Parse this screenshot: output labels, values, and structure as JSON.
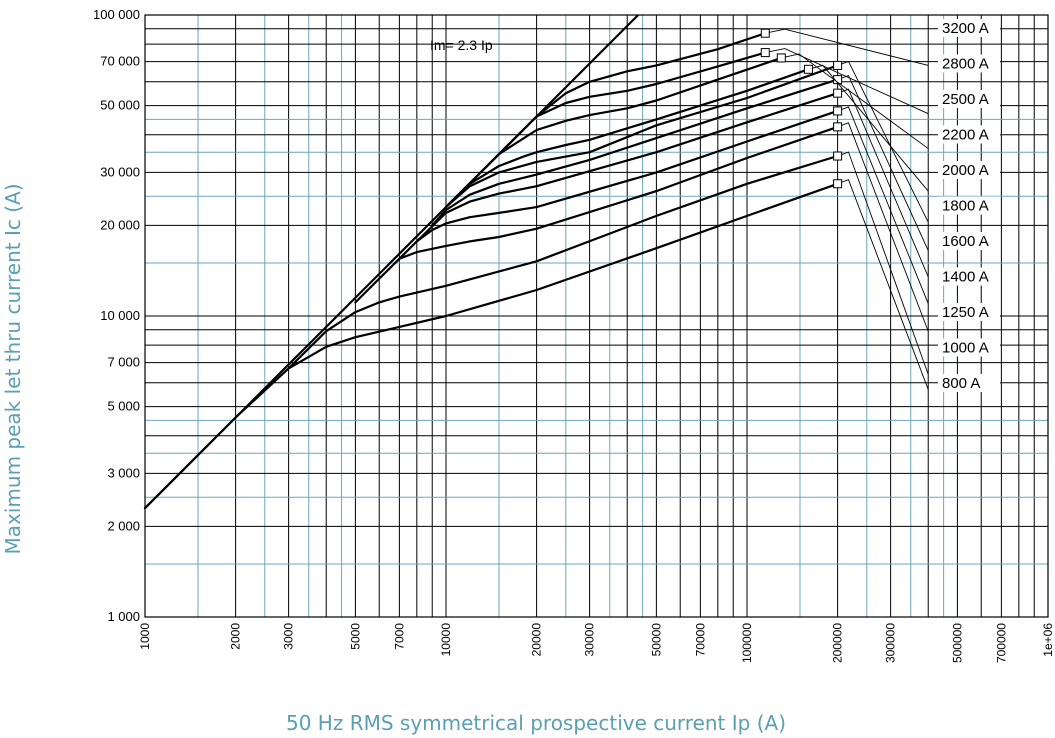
{
  "chart_data": {
    "type": "line",
    "xscale": "log",
    "yscale": "log",
    "xlim": [
      1000,
      1000000
    ],
    "ylim": [
      1000,
      100000
    ],
    "xlabel": "50 Hz RMS symmetrical prospective current Ip (A)",
    "ylabel": "Maximum peak let thru current Ic (A)",
    "x_tick_labels": [
      {
        "v": 1000,
        "label": "1000"
      },
      {
        "v": 2000,
        "label": "2000"
      },
      {
        "v": 3000,
        "label": "3000"
      },
      {
        "v": 5000,
        "label": "5000"
      },
      {
        "v": 7000,
        "label": "7000"
      },
      {
        "v": 10000,
        "label": "10000"
      },
      {
        "v": 20000,
        "label": "20000"
      },
      {
        "v": 30000,
        "label": "30000"
      },
      {
        "v": 50000,
        "label": "50000"
      },
      {
        "v": 70000,
        "label": "70000"
      },
      {
        "v": 100000,
        "label": "100000"
      },
      {
        "v": 200000,
        "label": "200000"
      },
      {
        "v": 300000,
        "label": "300000"
      },
      {
        "v": 500000,
        "label": "500000"
      },
      {
        "v": 700000,
        "label": "700000"
      },
      {
        "v": 1000000,
        "label": "1e+06"
      }
    ],
    "y_tick_labels": [
      {
        "v": 1000,
        "label": "1 000"
      },
      {
        "v": 2000,
        "label": "2 000"
      },
      {
        "v": 3000,
        "label": "3 000"
      },
      {
        "v": 5000,
        "label": "5 000"
      },
      {
        "v": 7000,
        "label": "7 000"
      },
      {
        "v": 10000,
        "label": "10 000"
      },
      {
        "v": 20000,
        "label": "20 000"
      },
      {
        "v": 30000,
        "label": "30 000"
      },
      {
        "v": 50000,
        "label": "50 000"
      },
      {
        "v": 70000,
        "label": "70 000"
      },
      {
        "v": 100000,
        "label": "100 000"
      }
    ],
    "grid": true,
    "asymptote": {
      "label": "Im= 2.3 Ip",
      "factor": 2.3
    },
    "series": [
      {
        "name": "800 A",
        "x": [
          1000,
          2000,
          3000,
          4000,
          5000,
          7000,
          10000,
          20000,
          50000,
          100000,
          200000
        ],
        "y": [
          2300,
          4600,
          6700,
          7900,
          8500,
          9200,
          10000,
          12200,
          16800,
          21500,
          27500
        ],
        "marker": {
          "x": 200000,
          "y": 27500
        },
        "leader": {
          "x": 400000,
          "y": 5700
        }
      },
      {
        "name": "1000 A",
        "x": [
          3000,
          4000,
          5000,
          6000,
          7000,
          10000,
          20000,
          50000,
          100000,
          200000
        ],
        "y": [
          6700,
          8900,
          10300,
          11100,
          11600,
          12600,
          15200,
          21500,
          27500,
          34000
        ],
        "marker": {
          "x": 200000,
          "y": 34000
        },
        "leader": {
          "x": 400000,
          "y": 6400
        }
      },
      {
        "name": "1250 A",
        "x": [
          5000,
          7000,
          8000,
          10000,
          12000,
          15000,
          20000,
          50000,
          100000,
          200000
        ],
        "y": [
          11100,
          15500,
          16300,
          17100,
          17700,
          18300,
          19500,
          26000,
          33500,
          42500
        ],
        "marker": {
          "x": 200000,
          "y": 42500
        },
        "leader": {
          "x": 400000,
          "y": 8900
        }
      },
      {
        "name": "1400 A",
        "x": [
          7000,
          8000,
          9000,
          10000,
          12000,
          15000,
          20000,
          50000,
          100000,
          200000
        ],
        "y": [
          15500,
          17700,
          19300,
          20300,
          21300,
          22000,
          23000,
          30000,
          38000,
          48000
        ],
        "marker": {
          "x": 200000,
          "y": 48000
        },
        "leader": {
          "x": 400000,
          "y": 11000
        }
      },
      {
        "name": "1600 A",
        "x": [
          8000,
          10000,
          12000,
          15000,
          20000,
          50000,
          100000,
          200000
        ],
        "y": [
          17700,
          22000,
          24000,
          25500,
          27000,
          35000,
          44000,
          55000
        ],
        "marker": {
          "x": 200000,
          "y": 55000
        },
        "leader": {
          "x": 400000,
          "y": 13500
        }
      },
      {
        "name": "1800 A",
        "x": [
          9000,
          10000,
          12000,
          15000,
          20000,
          30000,
          50000,
          100000,
          200000
        ],
        "y": [
          20000,
          22500,
          25300,
          27500,
          29500,
          33000,
          39000,
          49000,
          61000
        ],
        "marker": {
          "x": 200000,
          "y": 61000
        },
        "leader": {
          "x": 400000,
          "y": 16500
        }
      },
      {
        "name": "2000 A",
        "x": [
          10000,
          12000,
          15000,
          20000,
          30000,
          50000,
          100000,
          200000
        ],
        "y": [
          23000,
          27000,
          30000,
          32500,
          35000,
          43000,
          53000,
          68000
        ],
        "marker": {
          "x": 200000,
          "y": 68000
        },
        "leader": {
          "x": 400000,
          "y": 20500
        }
      },
      {
        "name": "2200 A",
        "x": [
          10000,
          12000,
          15000,
          18000,
          20000,
          25000,
          30000,
          50000,
          100000,
          160000
        ],
        "y": [
          23000,
          27500,
          31500,
          33800,
          35000,
          37000,
          38500,
          45000,
          56000,
          66000
        ],
        "marker": {
          "x": 160000,
          "y": 66000
        },
        "leader": {
          "x": 400000,
          "y": 26000
        }
      },
      {
        "name": "2500 A",
        "x": [
          10000,
          15000,
          20000,
          25000,
          30000,
          40000,
          50000,
          80000,
          130000
        ],
        "y": [
          23000,
          34500,
          41500,
          44500,
          46500,
          49000,
          52000,
          61000,
          72000
        ],
        "marker": {
          "x": 130000,
          "y": 72000
        },
        "leader": {
          "x": 400000,
          "y": 36000
        }
      },
      {
        "name": "2800 A",
        "x": [
          10000,
          15000,
          20000,
          25000,
          30000,
          40000,
          50000,
          80000,
          115000
        ],
        "y": [
          23000,
          34500,
          46000,
          51000,
          53500,
          56000,
          59000,
          67500,
          75000
        ],
        "marker": {
          "x": 115000,
          "y": 75000
        },
        "leader": {
          "x": 400000,
          "y": 47000
        }
      },
      {
        "name": "3200 A",
        "x": [
          10000,
          15000,
          20000,
          25000,
          30000,
          40000,
          50000,
          80000,
          115000
        ],
        "y": [
          23000,
          34500,
          46000,
          55000,
          60000,
          65000,
          68000,
          77000,
          87000
        ],
        "marker": {
          "x": 115000,
          "y": 87000
        },
        "leader": {
          "x": 400000,
          "y": 68000
        }
      }
    ]
  }
}
